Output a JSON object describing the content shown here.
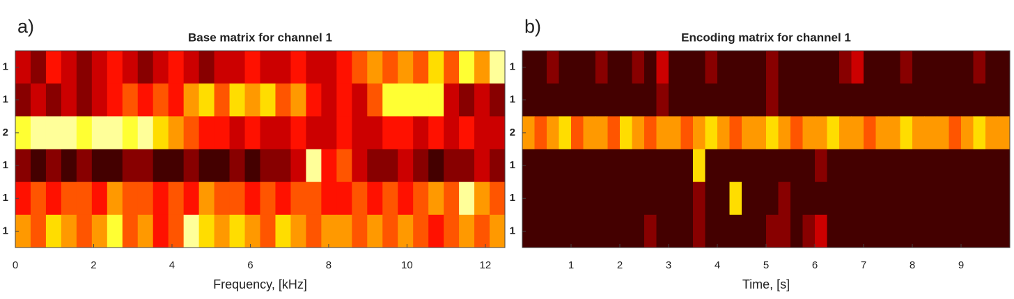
{
  "chart_data": [
    {
      "type": "heatmap",
      "panel_label": "a)",
      "title": "Base matrix for channel 1",
      "xlabel": "Frequency, [kHz]",
      "colormap": "hot",
      "vlim": [
        0,
        10
      ],
      "xlim": [
        0,
        12.5
      ],
      "xticks": [
        0,
        2,
        4,
        6,
        8,
        10,
        12
      ],
      "rows": [
        "1",
        "1",
        "2",
        "1",
        "1",
        "1"
      ],
      "tick_side": "left",
      "values": [
        [
          3,
          2,
          4,
          3,
          2,
          3,
          4,
          3,
          2,
          3,
          4,
          3,
          2,
          3,
          3,
          4,
          3,
          3,
          4,
          3,
          3,
          4,
          5,
          6,
          5,
          6,
          5,
          7,
          5,
          8,
          6,
          9
        ],
        [
          2,
          3,
          2,
          3,
          2,
          3,
          4,
          5,
          4,
          5,
          4,
          6,
          7,
          5,
          7,
          6,
          7,
          5,
          6,
          4,
          3,
          4,
          3,
          5,
          8,
          8,
          8,
          8,
          3,
          2,
          3,
          2
        ],
        [
          8,
          9,
          9,
          9,
          8,
          9,
          9,
          8,
          9,
          7,
          6,
          5,
          4,
          4,
          3,
          4,
          3,
          3,
          4,
          3,
          3,
          4,
          3,
          3,
          4,
          4,
          3,
          4,
          3,
          4,
          3,
          3
        ],
        [
          2,
          1,
          2,
          1,
          2,
          1,
          1,
          2,
          2,
          1,
          1,
          2,
          1,
          1,
          2,
          1,
          2,
          2,
          3,
          9,
          4,
          5,
          3,
          2,
          2,
          3,
          2,
          1,
          2,
          2,
          3,
          2
        ],
        [
          4,
          5,
          4,
          5,
          5,
          4,
          6,
          5,
          5,
          4,
          5,
          4,
          6,
          5,
          5,
          4,
          5,
          4,
          5,
          5,
          4,
          4,
          5,
          4,
          5,
          4,
          5,
          6,
          5,
          9,
          6,
          5
        ],
        [
          6,
          5,
          7,
          6,
          5,
          6,
          8,
          5,
          6,
          4,
          5,
          9,
          7,
          6,
          7,
          6,
          5,
          7,
          6,
          5,
          6,
          6,
          5,
          6,
          5,
          6,
          5,
          4,
          5,
          6,
          5,
          6
        ]
      ]
    },
    {
      "type": "heatmap",
      "panel_label": "b)",
      "title": "Encoding matrix for channel 1",
      "xlabel": "Time, [s]",
      "colormap": "hot",
      "vlim": [
        0,
        10
      ],
      "xlim": [
        0,
        10
      ],
      "xticks": [
        1,
        2,
        3,
        4,
        5,
        6,
        7,
        8,
        9
      ],
      "rows": [
        "1",
        "1",
        "2",
        "1",
        "1",
        "1"
      ],
      "tick_side": "left",
      "values": [
        [
          1,
          1,
          2,
          1,
          1,
          1,
          2,
          1,
          1,
          2,
          1,
          3,
          1,
          1,
          1,
          2,
          1,
          1,
          1,
          1,
          2,
          1,
          1,
          1,
          1,
          1,
          2,
          3,
          1,
          1,
          1,
          2,
          1,
          1,
          1,
          1,
          1,
          2,
          1,
          1
        ],
        [
          1,
          1,
          1,
          1,
          1,
          1,
          1,
          1,
          1,
          1,
          1,
          2,
          1,
          1,
          1,
          1,
          1,
          1,
          1,
          1,
          2,
          1,
          1,
          1,
          1,
          1,
          1,
          1,
          1,
          1,
          1,
          1,
          1,
          1,
          1,
          1,
          1,
          1,
          1,
          1
        ],
        [
          6,
          5,
          6,
          7,
          5,
          6,
          6,
          5,
          7,
          6,
          5,
          6,
          6,
          5,
          6,
          7,
          6,
          5,
          6,
          6,
          7,
          6,
          5,
          6,
          6,
          7,
          6,
          6,
          5,
          6,
          6,
          7,
          6,
          6,
          6,
          5,
          6,
          7,
          6,
          6
        ],
        [
          1,
          1,
          1,
          1,
          1,
          1,
          1,
          1,
          1,
          1,
          1,
          1,
          1,
          1,
          7,
          1,
          1,
          1,
          1,
          1,
          1,
          1,
          1,
          1,
          2,
          1,
          1,
          1,
          1,
          1,
          1,
          1,
          1,
          1,
          1,
          1,
          1,
          1,
          1,
          1
        ],
        [
          1,
          1,
          1,
          1,
          1,
          1,
          1,
          1,
          1,
          1,
          1,
          1,
          1,
          1,
          2,
          1,
          1,
          7,
          1,
          1,
          1,
          2,
          1,
          1,
          1,
          1,
          1,
          1,
          1,
          1,
          1,
          1,
          1,
          1,
          1,
          1,
          1,
          1,
          1,
          1
        ],
        [
          1,
          1,
          1,
          1,
          1,
          1,
          1,
          1,
          1,
          1,
          2,
          1,
          1,
          1,
          2,
          1,
          1,
          1,
          1,
          1,
          2,
          2,
          1,
          2,
          3,
          1,
          1,
          1,
          1,
          1,
          1,
          1,
          1,
          1,
          1,
          1,
          1,
          1,
          1,
          1
        ]
      ]
    }
  ]
}
